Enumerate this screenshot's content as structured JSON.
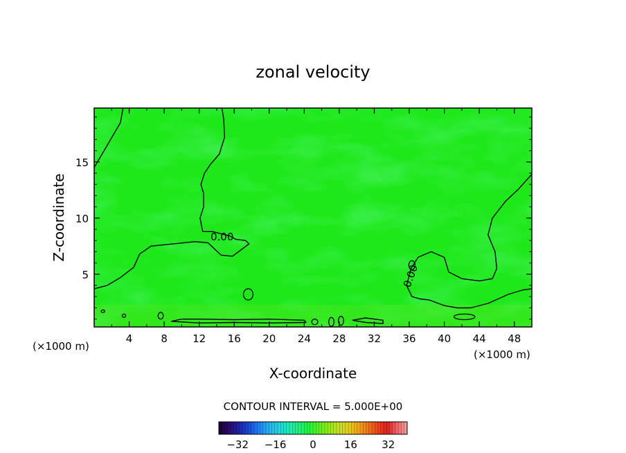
{
  "chart_data": {
    "type": "contour",
    "title": "zonal velocity",
    "xlabel": "X-coordinate",
    "ylabel": "Z-coordinate",
    "x_unit": "(×1000 m)",
    "x_unit_right": "(×1000 m)",
    "xlim": [
      0,
      50
    ],
    "ylim": [
      0.3,
      19.8
    ],
    "x_ticks": [
      4,
      8,
      12,
      16,
      20,
      24,
      28,
      32,
      36,
      40,
      44,
      48
    ],
    "y_ticks": [
      5,
      10,
      15
    ],
    "field_background": "#1ee81a",
    "contour_label": "0.00",
    "contour_interval_text": "CONTOUR INTERVAL = 5.000E+00",
    "colorbar": {
      "range": [
        -40,
        40
      ],
      "ticks": [
        -32,
        -16,
        0,
        16,
        32
      ],
      "colors": [
        "#1a0030",
        "#2a0a6a",
        "#2020a8",
        "#1848d8",
        "#1f7ef0",
        "#24b0f0",
        "#22d0e0",
        "#1ee8b8",
        "#1ef080",
        "#22f040",
        "#50f020",
        "#90e81a",
        "#c0e020",
        "#e0d020",
        "#f0a818",
        "#f07818",
        "#e84818",
        "#e02020",
        "#f06868",
        "#f0a0a0"
      ]
    },
    "contours_zero": [
      [
        [
          0,
          14.5
        ],
        [
          1.5,
          16.5
        ],
        [
          3,
          18.5
        ],
        [
          3.3,
          19.8
        ]
      ],
      [
        [
          0,
          3.7
        ],
        [
          1.5,
          4
        ],
        [
          3,
          4.7
        ],
        [
          4.5,
          5.6
        ],
        [
          5.2,
          6.8
        ],
        [
          6.5,
          7.5
        ],
        [
          9,
          7.7
        ],
        [
          11.5,
          7.9
        ],
        [
          13,
          7.8
        ],
        [
          14.5,
          6.7
        ],
        [
          15.8,
          6.6
        ],
        [
          17,
          7.3
        ],
        [
          17.7,
          7.7
        ],
        [
          17.3,
          8
        ],
        [
          16.2,
          8.1
        ],
        [
          15.5,
          8.4
        ],
        [
          13.5,
          8.8
        ],
        [
          12.4,
          8.8
        ],
        [
          12.1,
          10
        ],
        [
          12.5,
          11
        ],
        [
          12.5,
          12.2
        ],
        [
          12.2,
          13
        ],
        [
          12.6,
          14
        ],
        [
          13.3,
          14.8
        ],
        [
          14.3,
          15.7
        ],
        [
          14.9,
          17.2
        ],
        [
          14.8,
          18.8
        ],
        [
          14.6,
          19.8
        ]
      ],
      [
        [
          35.7,
          4
        ],
        [
          36.2,
          5.5
        ],
        [
          37,
          6.5
        ],
        [
          38.5,
          7
        ],
        [
          40,
          6.5
        ],
        [
          40.5,
          5.2
        ],
        [
          42,
          4.6
        ],
        [
          44,
          4.4
        ],
        [
          45.5,
          4.6
        ],
        [
          46,
          5.5
        ],
        [
          45.8,
          7
        ],
        [
          45,
          8.5
        ],
        [
          45.5,
          10
        ],
        [
          47,
          11.5
        ],
        [
          48.5,
          12.6
        ],
        [
          50,
          13.9
        ]
      ],
      [
        [
          35.7,
          4
        ],
        [
          36.3,
          3
        ],
        [
          37.2,
          2.8
        ],
        [
          38.3,
          2.7
        ],
        [
          40,
          2.2
        ],
        [
          41.5,
          2
        ],
        [
          43,
          2
        ],
        [
          45,
          2.4
        ],
        [
          47.3,
          3.2
        ],
        [
          49,
          3.6
        ],
        [
          50,
          3.7
        ]
      ],
      [
        [
          8.8,
          0.8
        ],
        [
          10,
          1
        ],
        [
          12,
          1
        ],
        [
          16,
          0.95
        ],
        [
          20,
          1
        ],
        [
          24,
          0.9
        ],
        [
          24.2,
          0.7
        ],
        [
          20,
          0.65
        ],
        [
          16,
          0.7
        ],
        [
          12,
          0.65
        ],
        [
          8.8,
          0.8
        ]
      ],
      [
        [
          29.5,
          0.9
        ],
        [
          31,
          1.1
        ],
        [
          33,
          0.9
        ],
        [
          33,
          0.6
        ],
        [
          31,
          0.7
        ],
        [
          29.5,
          0.9
        ]
      ]
    ],
    "contour_blobs": [
      {
        "cx": 17.6,
        "cy": 3.2,
        "rx": 0.55,
        "ry": 0.5
      },
      {
        "cx": 27.1,
        "cy": 0.75,
        "rx": 0.3,
        "ry": 0.4
      },
      {
        "cx": 28.2,
        "cy": 0.85,
        "rx": 0.3,
        "ry": 0.4
      },
      {
        "cx": 25.2,
        "cy": 0.75,
        "rx": 0.35,
        "ry": 0.25
      },
      {
        "cx": 7.6,
        "cy": 1.3,
        "rx": 0.3,
        "ry": 0.3
      },
      {
        "cx": 3.4,
        "cy": 1.3,
        "rx": 0.2,
        "ry": 0.15
      },
      {
        "cx": 1,
        "cy": 1.7,
        "rx": 0.2,
        "ry": 0.12
      },
      {
        "cx": 36.3,
        "cy": 5.8,
        "rx": 0.35,
        "ry": 0.4
      },
      {
        "cx": 42.3,
        "cy": 1.2,
        "rx": 1.2,
        "ry": 0.25
      }
    ]
  }
}
